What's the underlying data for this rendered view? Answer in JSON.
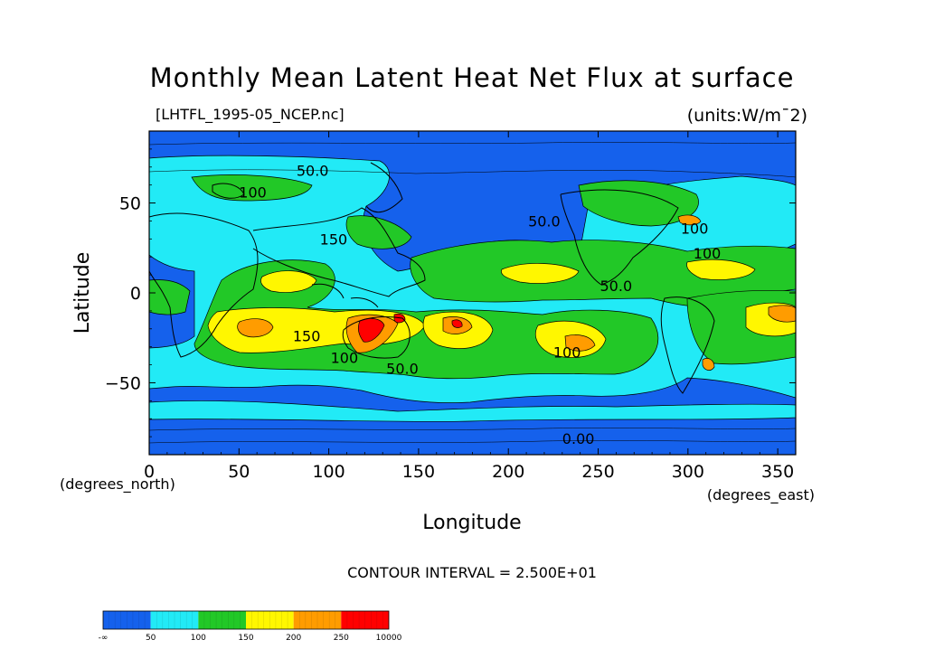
{
  "chart_data": {
    "type": "heatmap",
    "title": "Monthly Mean Latent Heat Net Flux at surface",
    "subtitle_left": "[LHTFL_1995-05_NCEP.nc]",
    "subtitle_right": "(units:W/m¯2)",
    "xlabel": "Longitude",
    "ylabel": "Latitude",
    "x_unit": "(degrees_east)",
    "y_unit": "(degrees_north)",
    "xlim": [
      0,
      360
    ],
    "ylim": [
      -90,
      90
    ],
    "x_ticks": [
      0,
      50,
      100,
      150,
      200,
      250,
      300,
      350
    ],
    "y_ticks": [
      -50,
      0,
      50
    ],
    "y_tick_labels": [
      "−50",
      "0",
      "50"
    ],
    "contour_note": "CONTOUR INTERVAL = 2.500E+01",
    "contour_labels": [
      {
        "text": "50.0",
        "lon": 82,
        "lat": 65
      },
      {
        "text": "100",
        "lon": 50,
        "lat": 53
      },
      {
        "text": "150",
        "lon": 95,
        "lat": 27
      },
      {
        "text": "150",
        "lon": 80,
        "lat": -27
      },
      {
        "text": "100",
        "lon": 101,
        "lat": -39
      },
      {
        "text": "50.0",
        "lon": 132,
        "lat": -45
      },
      {
        "text": "50.0",
        "lon": 211,
        "lat": 37
      },
      {
        "text": "100",
        "lon": 296,
        "lat": 33
      },
      {
        "text": "100",
        "lon": 303,
        "lat": 19
      },
      {
        "text": "50.0",
        "lon": 251,
        "lat": 1
      },
      {
        "text": "100",
        "lon": 225,
        "lat": -36
      },
      {
        "text": "0.00",
        "lon": 230,
        "lat": -84
      }
    ],
    "colorbar": {
      "labels": [
        "-∞",
        "50",
        "100",
        "150",
        "200",
        "250",
        "10000"
      ],
      "colors": [
        "#1561ec",
        "#22eaf6",
        "#22c827",
        "#fff700",
        "#ff9c00",
        "#ff0000"
      ]
    }
  }
}
